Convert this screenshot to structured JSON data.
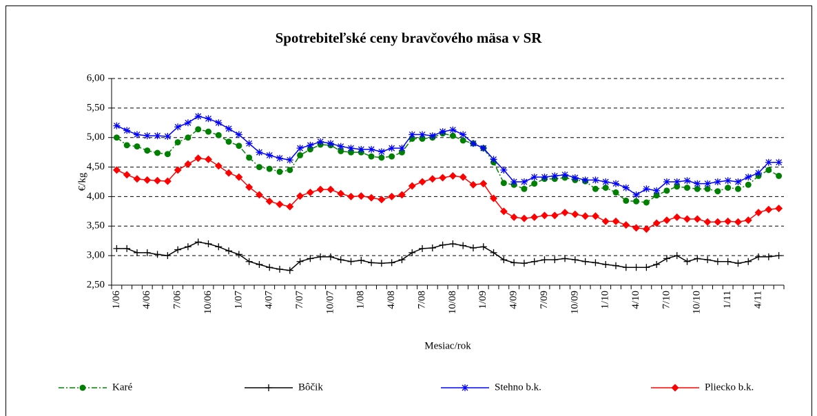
{
  "chart_data": {
    "type": "line",
    "title": "Spotrebiteľské ceny bravčového mäsa v SR",
    "y_label": "€/kg",
    "x_label": "Mesiac/rok",
    "categories": [
      "1/06",
      null,
      null,
      "4/06",
      null,
      null,
      "7/06",
      null,
      null,
      "10/06",
      null,
      null,
      "1/07",
      null,
      null,
      "4/07",
      null,
      null,
      "7/07",
      null,
      null,
      "10/07",
      null,
      null,
      "1/08",
      null,
      null,
      "4/08",
      null,
      null,
      "7/08",
      null,
      null,
      "10/08",
      null,
      null,
      "1/09",
      null,
      null,
      "4/09",
      null,
      null,
      "7/09",
      null,
      null,
      "10/09",
      null,
      null,
      "1/10",
      null,
      null,
      "4/10",
      null,
      null,
      "7/10",
      null,
      null,
      "10/10",
      null,
      null,
      "1/11",
      null,
      null,
      "4/11",
      null,
      null
    ],
    "ylim": [
      2.5,
      6.0
    ],
    "yticks": [
      {
        "value": 2.5,
        "label": "2,50"
      },
      {
        "value": 3.0,
        "label": "3,00"
      },
      {
        "value": 3.5,
        "label": "3,50"
      },
      {
        "value": 4.0,
        "label": "4,00"
      },
      {
        "value": 4.5,
        "label": "4,50"
      },
      {
        "value": 5.0,
        "label": "5,00"
      },
      {
        "value": 5.5,
        "label": "5,50"
      },
      {
        "value": 6.0,
        "label": "6,00"
      }
    ],
    "grid": true,
    "legend": "bottom",
    "series": [
      {
        "name": "Karé",
        "color": "#008000",
        "marker": "circle",
        "line_style": "dashed",
        "values": [
          5.0,
          4.87,
          4.85,
          4.78,
          4.74,
          4.72,
          4.92,
          5.0,
          5.14,
          5.1,
          5.04,
          4.93,
          4.86,
          4.66,
          4.5,
          4.47,
          4.42,
          4.45,
          4.7,
          4.8,
          4.88,
          4.87,
          4.77,
          4.75,
          4.75,
          4.68,
          4.66,
          4.68,
          4.75,
          4.98,
          4.98,
          5.0,
          5.07,
          5.03,
          4.95,
          4.9,
          4.82,
          4.58,
          4.23,
          4.2,
          4.13,
          4.22,
          4.3,
          4.3,
          4.32,
          4.28,
          4.26,
          4.13,
          4.15,
          4.07,
          3.93,
          3.92,
          3.9,
          4.02,
          4.1,
          4.17,
          4.15,
          4.13,
          4.13,
          4.09,
          4.15,
          4.13,
          4.2,
          4.35,
          4.45,
          4.35
        ]
      },
      {
        "name": "Bôčik",
        "color": "#000000",
        "marker": "plus",
        "line_style": "solid",
        "values": [
          3.12,
          3.12,
          3.05,
          3.05,
          3.02,
          3.0,
          3.1,
          3.15,
          3.23,
          3.2,
          3.15,
          3.08,
          3.02,
          2.9,
          2.85,
          2.8,
          2.77,
          2.75,
          2.9,
          2.95,
          2.98,
          2.98,
          2.93,
          2.9,
          2.92,
          2.88,
          2.87,
          2.88,
          2.93,
          3.05,
          3.12,
          3.13,
          3.18,
          3.2,
          3.17,
          3.13,
          3.15,
          3.05,
          2.93,
          2.88,
          2.87,
          2.9,
          2.93,
          2.93,
          2.95,
          2.93,
          2.9,
          2.88,
          2.85,
          2.83,
          2.8,
          2.8,
          2.8,
          2.85,
          2.95,
          3.0,
          2.9,
          2.95,
          2.93,
          2.9,
          2.9,
          2.87,
          2.9,
          2.98,
          2.98,
          3.0
        ]
      },
      {
        "name": "Stehno b.k.",
        "color": "#0000ff",
        "marker": "star",
        "line_style": "solid",
        "values": [
          5.2,
          5.12,
          5.05,
          5.03,
          5.03,
          5.02,
          5.18,
          5.25,
          5.36,
          5.32,
          5.25,
          5.15,
          5.05,
          4.9,
          4.75,
          4.7,
          4.65,
          4.62,
          4.82,
          4.87,
          4.93,
          4.9,
          4.85,
          4.82,
          4.8,
          4.8,
          4.76,
          4.82,
          4.82,
          5.05,
          5.05,
          5.03,
          5.1,
          5.13,
          5.05,
          4.9,
          4.82,
          4.63,
          4.45,
          4.25,
          4.25,
          4.33,
          4.33,
          4.35,
          4.37,
          4.32,
          4.28,
          4.28,
          4.25,
          4.22,
          4.15,
          4.03,
          4.13,
          4.1,
          4.25,
          4.25,
          4.27,
          4.22,
          4.22,
          4.25,
          4.27,
          4.25,
          4.33,
          4.4,
          4.58,
          4.58
        ]
      },
      {
        "name": "Pliecko b.k.",
        "color": "#ff0000",
        "marker": "diamond",
        "line_style": "solid",
        "values": [
          4.45,
          4.37,
          4.3,
          4.28,
          4.27,
          4.26,
          4.45,
          4.55,
          4.65,
          4.63,
          4.52,
          4.4,
          4.33,
          4.16,
          4.03,
          3.92,
          3.87,
          3.83,
          4.01,
          4.07,
          4.12,
          4.12,
          4.05,
          4.0,
          4.01,
          3.98,
          3.95,
          4.0,
          4.03,
          4.18,
          4.25,
          4.3,
          4.32,
          4.35,
          4.33,
          4.2,
          4.22,
          3.97,
          3.75,
          3.65,
          3.63,
          3.65,
          3.68,
          3.68,
          3.73,
          3.7,
          3.67,
          3.67,
          3.58,
          3.58,
          3.52,
          3.47,
          3.45,
          3.55,
          3.6,
          3.65,
          3.62,
          3.62,
          3.57,
          3.57,
          3.58,
          3.57,
          3.6,
          3.73,
          3.78,
          3.8
        ]
      }
    ]
  }
}
